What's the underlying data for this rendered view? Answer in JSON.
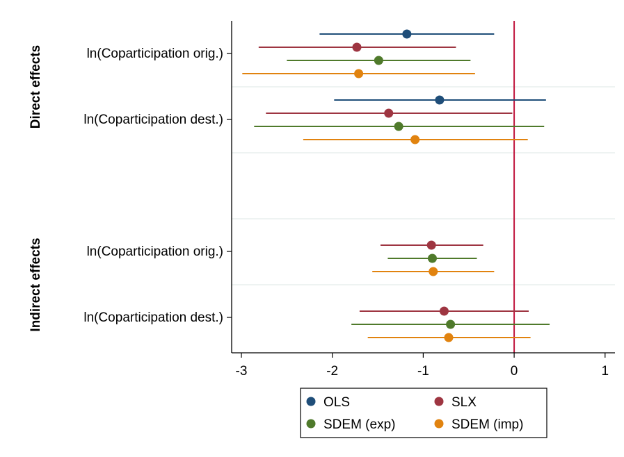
{
  "chart_data": {
    "type": "scatter",
    "subtype": "coefficient-plot",
    "title": "",
    "xlabel": "",
    "ylabel": "",
    "xlim": [
      -3.1,
      1.1
    ],
    "xticks": [
      -3,
      -2,
      -1,
      0,
      1
    ],
    "x_tick_labels": [
      "-3",
      "-2",
      "-1",
      "0",
      "1"
    ],
    "reference_line_x": 0,
    "groups": [
      {
        "label": "Direct effects",
        "rows": [
          {
            "label": "ln(Coparticipation orig.)",
            "estimates": [
              {
                "series": "OLS",
                "est": -1.18,
                "lo": -2.14,
                "hi": -0.22
              },
              {
                "series": "SLX",
                "est": -1.73,
                "lo": -2.81,
                "hi": -0.64
              },
              {
                "series": "SDEM (exp)",
                "est": -1.49,
                "lo": -2.5,
                "hi": -0.48
              },
              {
                "series": "SDEM (imp)",
                "est": -1.71,
                "lo": -2.99,
                "hi": -0.43
              }
            ]
          },
          {
            "label": "ln(Coparticipation dest.)",
            "estimates": [
              {
                "series": "OLS",
                "est": -0.82,
                "lo": -1.98,
                "hi": 0.35
              },
              {
                "series": "SLX",
                "est": -1.38,
                "lo": -2.73,
                "hi": -0.02
              },
              {
                "series": "SDEM (exp)",
                "est": -1.27,
                "lo": -2.86,
                "hi": 0.33
              },
              {
                "series": "SDEM (imp)",
                "est": -1.09,
                "lo": -2.32,
                "hi": 0.15
              }
            ]
          }
        ]
      },
      {
        "label": "Indirect effects",
        "rows": [
          {
            "label": "ln(Coparticipation orig.)",
            "estimates": [
              {
                "series": "SLX",
                "est": -0.91,
                "lo": -1.47,
                "hi": -0.34
              },
              {
                "series": "SDEM (exp)",
                "est": -0.9,
                "lo": -1.39,
                "hi": -0.41
              },
              {
                "series": "SDEM (imp)",
                "est": -0.89,
                "lo": -1.56,
                "hi": -0.22
              }
            ]
          },
          {
            "label": "ln(Coparticipation dest.)",
            "estimates": [
              {
                "series": "SLX",
                "est": -0.77,
                "lo": -1.7,
                "hi": 0.16
              },
              {
                "series": "SDEM (exp)",
                "est": -0.7,
                "lo": -1.79,
                "hi": 0.39
              },
              {
                "series": "SDEM (imp)",
                "est": -0.72,
                "lo": -1.61,
                "hi": 0.18
              }
            ]
          }
        ]
      }
    ],
    "series": [
      {
        "name": "OLS",
        "color": "#1f4e79"
      },
      {
        "name": "SLX",
        "color": "#9e3541"
      },
      {
        "name": "SDEM (exp)",
        "color": "#4f7a2b"
      },
      {
        "name": "SDEM (imp)",
        "color": "#e1830f"
      }
    ],
    "legend": {
      "position": "bottom",
      "columns": 2
    },
    "reference_line_color": "#c0143c",
    "grid": false
  }
}
